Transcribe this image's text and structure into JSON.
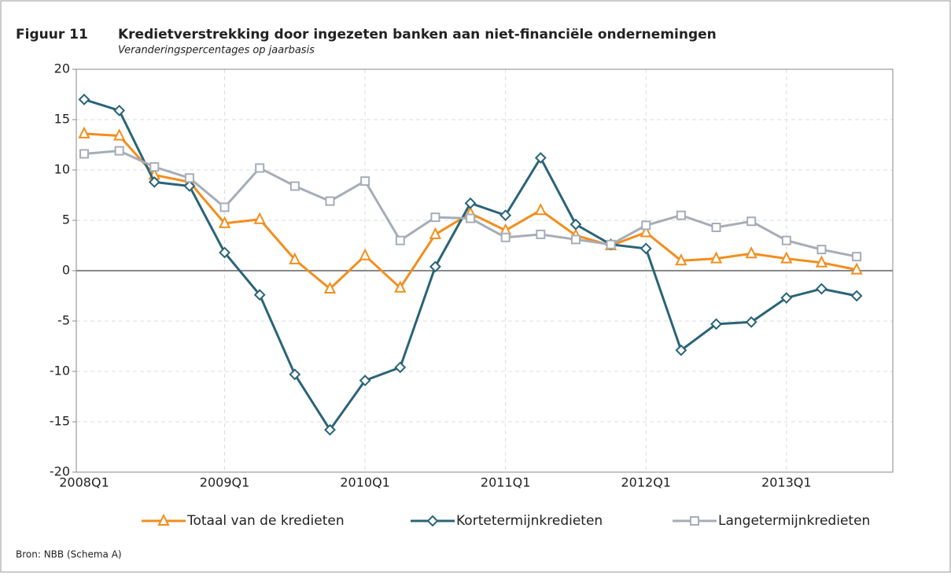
{
  "chart_data": {
    "type": "line",
    "figure_label": "Figuur 11",
    "title": "Kredietverstrekking door ingezeten banken aan niet-financiële ondernemingen",
    "subtitle": "Veranderingspercentages op jaarbasis",
    "source": "Bron: NBB (Schema A)",
    "categories": [
      "2008Q1",
      null,
      null,
      null,
      "2009Q1",
      null,
      null,
      null,
      "2010Q1",
      null,
      null,
      null,
      "2011Q1",
      null,
      null,
      null,
      "2012Q1",
      null,
      null,
      null,
      "2013Q1",
      null,
      null
    ],
    "series": [
      {
        "name": "Totaal van de kredieten",
        "color": "#f28e1e",
        "marker": "triangle",
        "values": [
          13.6,
          13.4,
          9.5,
          8.8,
          4.7,
          5.1,
          1.1,
          -1.8,
          1.5,
          -1.7,
          3.6,
          5.7,
          4.0,
          6.0,
          3.5,
          2.5,
          3.8,
          1.0,
          1.2,
          1.7,
          1.2,
          0.8,
          0.1
        ]
      },
      {
        "name": "Kortetermijnkredieten",
        "color": "#2a6478",
        "marker": "diamond",
        "values": [
          17.0,
          15.9,
          8.8,
          8.4,
          1.8,
          -2.4,
          -10.3,
          -15.8,
          -10.9,
          -9.6,
          0.4,
          6.7,
          5.5,
          11.2,
          4.6,
          2.6,
          2.2,
          -7.9,
          -5.3,
          -5.1,
          -2.7,
          -1.8,
          -2.5
        ]
      },
      {
        "name": "Langetermijnkredieten",
        "color": "#a6adb8",
        "marker": "square",
        "values": [
          11.6,
          11.9,
          10.3,
          9.2,
          6.3,
          10.2,
          8.4,
          6.9,
          8.9,
          3.0,
          5.3,
          5.2,
          3.3,
          3.6,
          3.1,
          2.6,
          4.5,
          5.5,
          4.3,
          4.9,
          3.0,
          2.1,
          1.4
        ]
      }
    ],
    "ylim": [
      -20,
      20
    ],
    "yticks": [
      -20,
      -15,
      -10,
      -5,
      0,
      5,
      10,
      15,
      20
    ],
    "grid": true,
    "legend": "bottom"
  }
}
